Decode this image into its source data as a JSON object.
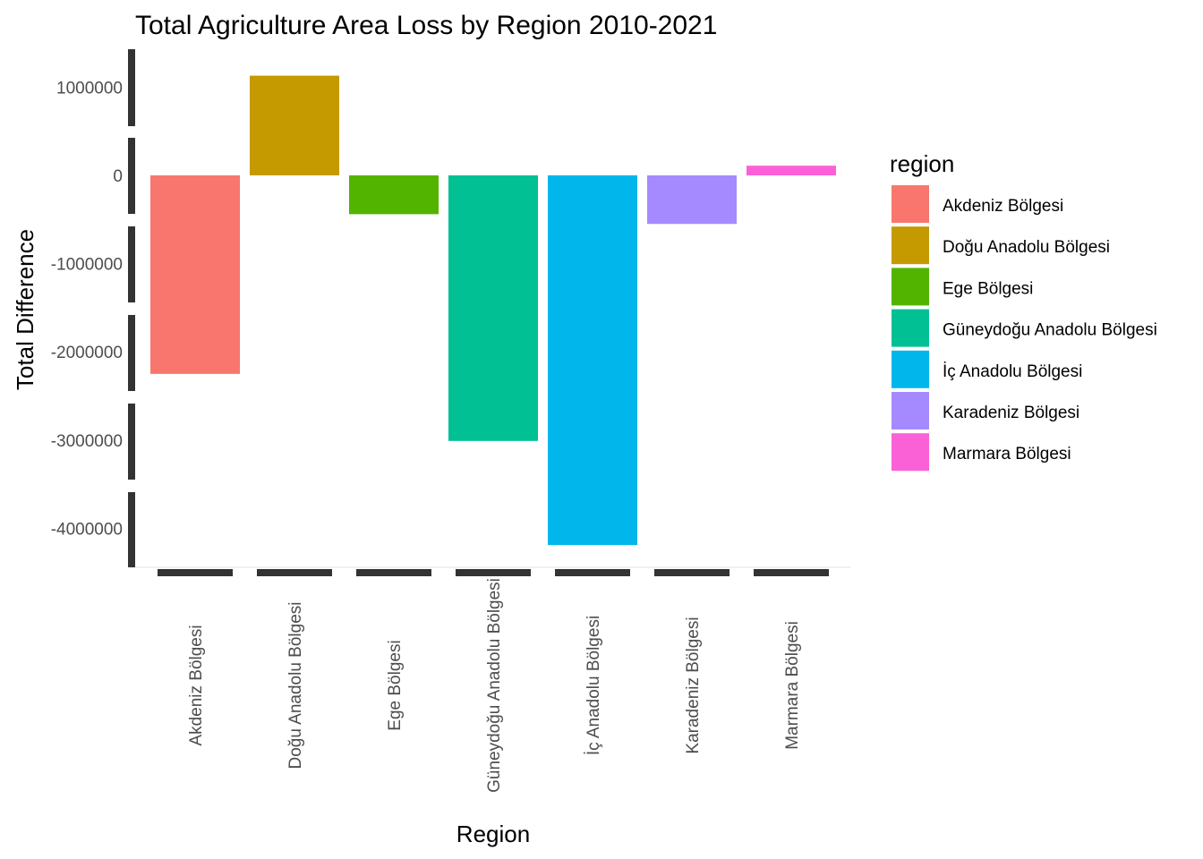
{
  "chart_data": {
    "type": "bar",
    "title": "Total Agriculture Area Loss by Region 2010-2021",
    "xlabel": "Region",
    "ylabel": "Total Difference",
    "categories": [
      "Akdeniz Bölgesi",
      "Doğu Anadolu Bölgesi",
      "Ege Bölgesi",
      "Güneydoğu Anadolu Bölgesi",
      "İç Anadolu Bölgesi",
      "Karadeniz Bölgesi",
      "Marmara Bölgesi"
    ],
    "values": [
      -2250000,
      1130000,
      -440000,
      -3010000,
      -4190000,
      -550000,
      110000
    ],
    "colors": [
      "#F8766D",
      "#C49A00",
      "#53B400",
      "#00C094",
      "#00B6EB",
      "#A58AFF",
      "#FB61D7"
    ],
    "yticks": [
      1000000,
      0,
      -1000000,
      -2000000,
      -3000000,
      -4000000
    ],
    "ytick_labels": [
      "1000000",
      "0",
      "-1000000",
      "-2000000",
      "-3000000",
      "-4000000"
    ],
    "ylim": [
      -4400000,
      1400000
    ],
    "grid": false,
    "legend": {
      "title": "region",
      "position": "right",
      "entries": [
        "Akdeniz Bölgesi",
        "Doğu Anadolu Bölgesi",
        "Ege Bölgesi",
        "Güneydoğu Anadolu Bölgesi",
        "İç Anadolu Bölgesi",
        "Karadeniz Bölgesi",
        "Marmara Bölgesi"
      ]
    }
  }
}
